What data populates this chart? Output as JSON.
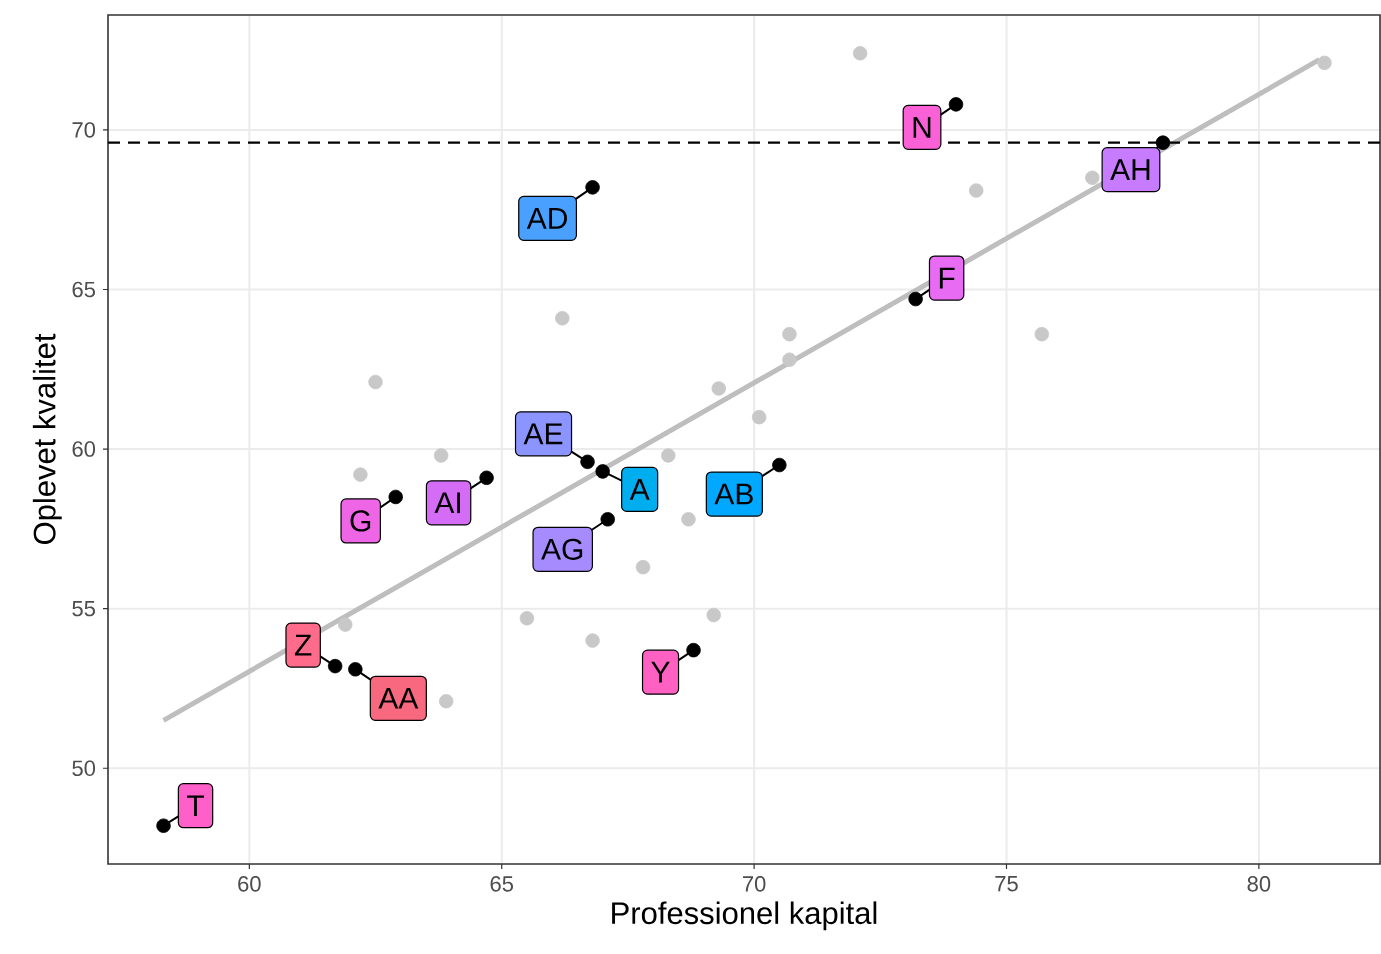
{
  "chart_data": {
    "type": "scatter",
    "xlabel": "Professionel kapital",
    "ylabel": "Oplevet kvalitet",
    "xlim": [
      57.2,
      82.4
    ],
    "ylim": [
      47.0,
      73.6
    ],
    "xticks": [
      60,
      65,
      70,
      75,
      80
    ],
    "yticks": [
      50,
      55,
      60,
      65,
      70
    ],
    "grid": true,
    "series": [
      {
        "marker": "circle",
        "color": "#c8c8c8",
        "x": [
          72.1,
          81.3,
          74.4,
          76.7,
          66.2,
          70.7,
          70.7,
          75.7,
          62.5,
          69.3,
          70.1,
          63.8,
          62.2,
          68.3,
          68.7,
          67.8,
          61.9,
          65.5,
          66.8,
          69.2,
          63.9
        ],
        "values": [
          72.4,
          72.1,
          68.1,
          68.5,
          64.1,
          63.6,
          62.8,
          63.6,
          62.1,
          61.9,
          61.0,
          59.8,
          59.2,
          59.8,
          57.8,
          56.3,
          54.5,
          54.7,
          54.0,
          54.8,
          52.1
        ]
      },
      {
        "type": "line",
        "marker": "none",
        "color": "#bebebe",
        "x": [
          58.3,
          81.2
        ],
        "values": [
          51.5,
          72.2
        ]
      },
      {
        "marker": "circle",
        "color": "#000000",
        "x": [
          58.3,
          61.7,
          62.1,
          62.9,
          64.7,
          66.7,
          67.0,
          67.1,
          70.5,
          68.8,
          66.8,
          74.0,
          73.2,
          78.1
        ],
        "values": [
          48.2,
          53.2,
          53.1,
          58.5,
          59.1,
          59.6,
          59.3,
          57.8,
          59.5,
          53.7,
          68.2,
          70.8,
          64.7,
          69.6
        ]
      }
    ],
    "ref_lines": [
      {
        "axis": "y",
        "value": 69.6,
        "color": "#000000",
        "line_style": "dashed"
      }
    ],
    "annotations": [
      {
        "text": "T",
        "x": 58.3,
        "y": 48.2
      },
      {
        "text": "Z",
        "x": 61.7,
        "y": 53.2
      },
      {
        "text": "AA",
        "x": 62.1,
        "y": 53.1
      },
      {
        "text": "G",
        "x": 62.9,
        "y": 58.5
      },
      {
        "text": "AI",
        "x": 64.7,
        "y": 59.1
      },
      {
        "text": "AE",
        "x": 66.7,
        "y": 59.6
      },
      {
        "text": "A",
        "x": 67.0,
        "y": 59.3
      },
      {
        "text": "AG",
        "x": 67.1,
        "y": 57.8
      },
      {
        "text": "AB",
        "x": 70.5,
        "y": 59.5
      },
      {
        "text": "Y",
        "x": 68.8,
        "y": 53.7
      },
      {
        "text": "AD",
        "x": 66.8,
        "y": 68.2
      },
      {
        "text": "N",
        "x": 74.0,
        "y": 70.8
      },
      {
        "text": "F",
        "x": 73.2,
        "y": 64.7
      },
      {
        "text": "AH",
        "x": 78.1,
        "y": 69.6
      }
    ]
  }
}
